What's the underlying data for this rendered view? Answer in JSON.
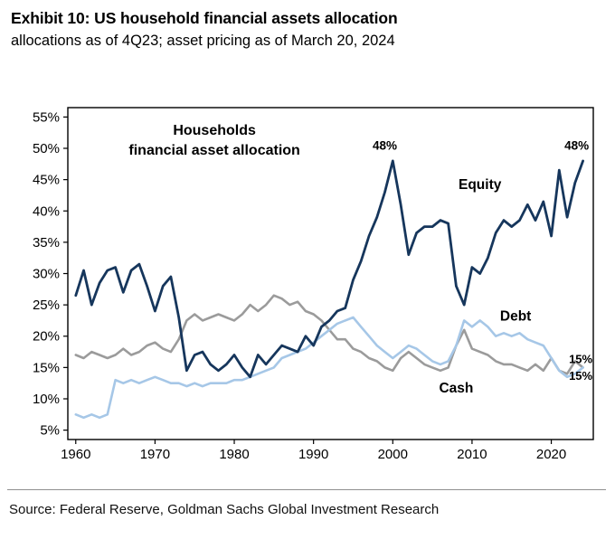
{
  "header": {
    "title": "Exhibit 10: US household financial assets allocation",
    "subtitle": "allocations as of 4Q23; asset pricing as of March 20, 2024"
  },
  "footer": {
    "source": "Source: Federal Reserve, Goldman Sachs Global Investment Research"
  },
  "colors": {
    "equity": "#16365c",
    "debt": "#a6c7e7",
    "cash": "#9b9b9b",
    "text": "#000000",
    "axis": "#000000"
  },
  "chart_data": {
    "type": "line",
    "title": "Households financial asset allocation",
    "xlabel": "",
    "ylabel": "",
    "grid": false,
    "legend_position": "inline-labels",
    "xlim": [
      1959,
      2025.3
    ],
    "ylim": [
      3.5,
      56.5
    ],
    "xticks": [
      1960,
      1970,
      1980,
      1990,
      2000,
      2010,
      2020
    ],
    "yticks": [
      5,
      10,
      15,
      20,
      25,
      30,
      35,
      40,
      45,
      50,
      55
    ],
    "ytick_suffix": "%",
    "years": [
      1960,
      1961,
      1962,
      1963,
      1964,
      1965,
      1966,
      1967,
      1968,
      1969,
      1970,
      1971,
      1972,
      1973,
      1974,
      1975,
      1976,
      1977,
      1978,
      1979,
      1980,
      1981,
      1982,
      1983,
      1984,
      1985,
      1986,
      1987,
      1988,
      1989,
      1990,
      1991,
      1992,
      1993,
      1994,
      1995,
      1996,
      1997,
      1998,
      1999,
      2000,
      2001,
      2002,
      2003,
      2004,
      2005,
      2006,
      2007,
      2008,
      2009,
      2010,
      2011,
      2012,
      2013,
      2014,
      2015,
      2016,
      2017,
      2018,
      2019,
      2020,
      2021,
      2022,
      2023,
      2024
    ],
    "series": [
      {
        "name": "Equity",
        "color_key": "equity",
        "width": 2.8,
        "values": [
          26.5,
          30.5,
          25,
          28.5,
          30.5,
          31,
          27,
          30.5,
          31.5,
          28,
          24,
          28,
          29.5,
          23,
          14.5,
          17,
          17.5,
          15.5,
          14.5,
          15.5,
          17,
          15,
          13.5,
          17,
          15.5,
          17,
          18.5,
          18,
          17.5,
          20,
          18.5,
          21.5,
          22.5,
          24,
          24.5,
          29,
          32,
          36,
          39,
          43,
          48,
          41,
          33,
          36.5,
          37.5,
          37.5,
          38.5,
          38,
          28,
          25,
          31,
          30,
          32.5,
          36.5,
          38.5,
          37.5,
          38.5,
          41,
          38.5,
          41.5,
          36,
          46.5,
          39,
          44.5,
          48
        ]
      },
      {
        "name": "Debt",
        "color_key": "debt",
        "width": 2.6,
        "values": [
          7.5,
          7,
          7.5,
          7,
          7.5,
          13,
          12.5,
          13,
          12.5,
          13,
          13.5,
          13,
          12.5,
          12.5,
          12,
          12.5,
          12,
          12.5,
          12.5,
          12.5,
          13,
          13,
          13.5,
          14,
          14.5,
          15,
          16.5,
          17,
          17.5,
          18,
          19,
          20,
          21,
          22,
          22.5,
          23,
          21.5,
          20,
          18.5,
          17.5,
          16.5,
          17.5,
          18.5,
          18,
          17,
          16,
          15.5,
          16,
          18.5,
          22.5,
          21.5,
          22.5,
          21.5,
          20,
          20.5,
          20,
          20.5,
          19.5,
          19,
          18.5,
          16.5,
          14.5,
          13.5,
          14,
          15
        ]
      },
      {
        "name": "Cash",
        "color_key": "cash",
        "width": 2.6,
        "values": [
          17,
          16.5,
          17.5,
          17,
          16.5,
          17,
          18,
          17,
          17.5,
          18.5,
          19,
          18,
          17.5,
          19.5,
          22.5,
          23.5,
          22.5,
          23,
          23.5,
          23,
          22.5,
          23.5,
          25,
          24,
          25,
          26.5,
          26,
          25,
          25.5,
          24,
          23.5,
          22.5,
          21,
          19.5,
          19.5,
          18,
          17.5,
          16.5,
          16,
          15,
          14.5,
          16.5,
          17.5,
          16.5,
          15.5,
          15,
          14.5,
          15,
          18.5,
          21,
          18,
          17.5,
          17,
          16,
          15.5,
          15.5,
          15,
          14.5,
          15.5,
          14.5,
          16.5,
          14.5,
          14,
          16,
          15
        ]
      }
    ],
    "annotations": [
      {
        "text": "Households",
        "x": 1977.5,
        "y": 52.2,
        "color": "text",
        "bold": true,
        "size": 16,
        "anchor": "middle"
      },
      {
        "text": "financial asset allocation",
        "x": 1977.5,
        "y": 49.0,
        "color": "text",
        "bold": true,
        "size": 16,
        "anchor": "middle"
      },
      {
        "text": "48%",
        "x": 1999,
        "y": 49.8,
        "color": "equity",
        "bold": true,
        "size": 13.5,
        "anchor": "middle"
      },
      {
        "text": "48%",
        "x": 2023.2,
        "y": 49.8,
        "color": "equity",
        "bold": true,
        "size": 13.5,
        "anchor": "middle"
      },
      {
        "text": "Equity",
        "x": 2011,
        "y": 43.5,
        "color": "equity",
        "bold": true,
        "size": 15.5,
        "anchor": "middle"
      },
      {
        "text": "Debt",
        "x": 2015.5,
        "y": 22.5,
        "color": "debt",
        "bold": true,
        "size": 15.5,
        "anchor": "middle"
      },
      {
        "text": "Cash",
        "x": 2008,
        "y": 11,
        "color": "cash",
        "bold": true,
        "size": 15.5,
        "anchor": "middle"
      },
      {
        "text": "15%",
        "x": 2025.2,
        "y": 15.7,
        "color": "cash",
        "bold": true,
        "size": 13,
        "anchor": "end"
      },
      {
        "text": "15%",
        "x": 2025.2,
        "y": 13.0,
        "color": "debt",
        "bold": true,
        "size": 13,
        "anchor": "end"
      }
    ]
  }
}
